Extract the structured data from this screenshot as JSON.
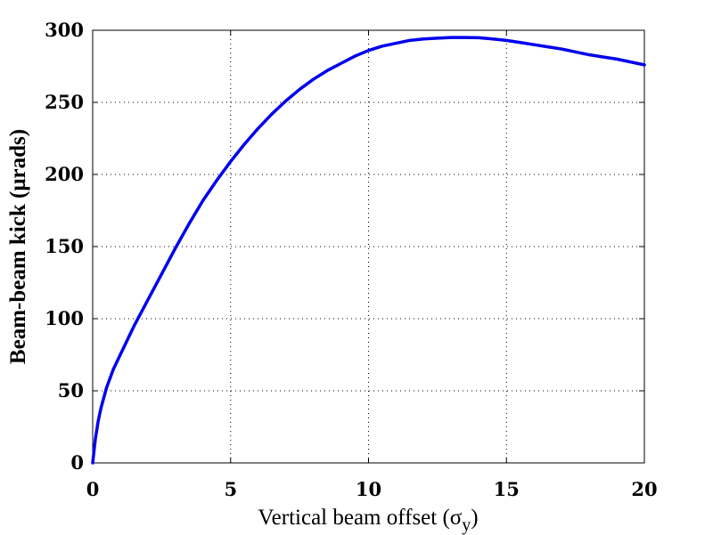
{
  "chart_data": {
    "type": "line",
    "title": "",
    "xlabel": "Vertical beam offset (σ",
    "xlabel_sub": "y",
    "xlabel_end": ")",
    "ylabel": "Beam-beam kick (μrads)",
    "xlim": [
      0,
      20
    ],
    "ylim": [
      0,
      300
    ],
    "xticks": [
      0,
      5,
      10,
      15,
      20
    ],
    "yticks": [
      0,
      50,
      100,
      150,
      200,
      250,
      300
    ],
    "grid": true,
    "line_color": "#0000ee",
    "series": [
      {
        "x": [
          0,
          0.1,
          0.2,
          0.3,
          0.5,
          0.75,
          1,
          1.5,
          2,
          2.5,
          3,
          3.5,
          4,
          4.5,
          5,
          5.5,
          6,
          6.5,
          7,
          7.5,
          8,
          8.5,
          9,
          9.5,
          10,
          10.5,
          11,
          11.5,
          12,
          12.5,
          13,
          13.5,
          14,
          14.5,
          15,
          15.5,
          16,
          16.5,
          17,
          17.5,
          18,
          18.5,
          19,
          19.5,
          20
        ],
        "values": [
          0,
          17,
          29,
          38,
          52,
          65,
          75,
          95,
          113,
          131,
          149,
          166,
          182,
          196,
          209,
          221,
          232,
          242,
          251,
          259,
          266,
          272,
          277,
          282,
          286,
          289,
          291,
          293,
          294,
          294.5,
          295,
          295,
          294.8,
          294,
          293,
          291.5,
          290,
          288.5,
          287,
          285,
          283,
          281.5,
          280,
          278,
          276
        ]
      }
    ]
  }
}
